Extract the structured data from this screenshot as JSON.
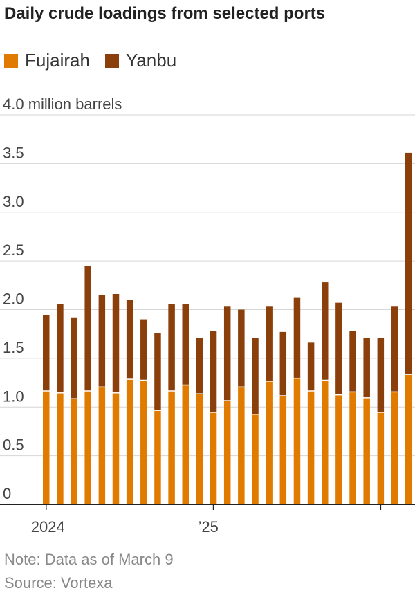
{
  "chart_data": {
    "type": "bar",
    "stacked": true,
    "title": "Daily crude loadings from selected ports",
    "unit_label": "4.0 million barrels",
    "ylim": [
      0,
      4.0
    ],
    "y_ticks": [
      "0",
      "0.5",
      "1.0",
      "1.5",
      "2.0",
      "2.5",
      "3.0",
      "3.5"
    ],
    "x_tick_labels": [
      "2024",
      "’25"
    ],
    "legend_position": "top-left",
    "grid": true,
    "series": [
      {
        "name": "Fujairah",
        "color": "#e07b00",
        "values": [
          1.16,
          1.14,
          1.08,
          1.16,
          1.2,
          1.14,
          1.28,
          1.27,
          0.96,
          1.16,
          1.22,
          1.13,
          0.94,
          1.06,
          1.2,
          0.92,
          1.26,
          1.11,
          1.29,
          1.16,
          1.27,
          1.12,
          1.15,
          1.09,
          0.94,
          1.15,
          1.33
        ]
      },
      {
        "name": "Yanbu",
        "color": "#8b3f0a",
        "values": [
          0.78,
          0.92,
          0.84,
          1.29,
          0.95,
          1.02,
          0.82,
          0.63,
          0.8,
          0.9,
          0.84,
          0.58,
          0.84,
          0.97,
          0.8,
          0.79,
          0.77,
          0.66,
          0.83,
          0.5,
          1.01,
          0.95,
          0.63,
          0.62,
          0.77,
          0.88,
          2.28
        ]
      }
    ]
  },
  "notes": {
    "note": "Note: Data as of March 9",
    "source": "Source: Vortexa"
  }
}
